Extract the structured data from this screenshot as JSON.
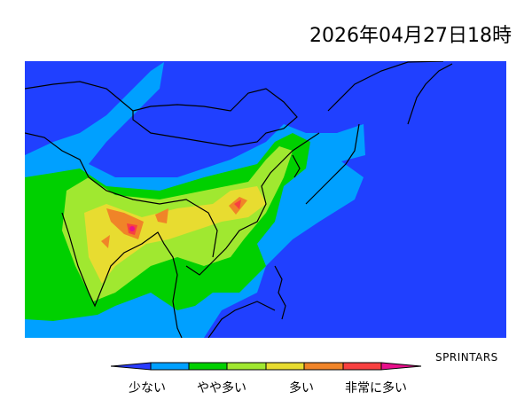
{
  "title": "2026年04月27日18時",
  "credit": "SPRINTARS",
  "legend": {
    "labels": [
      "少ない",
      "やや多い",
      "多い",
      "非常に多い"
    ],
    "colors": [
      "#2a3cff",
      "#00a0ff",
      "#00d000",
      "#a0e830",
      "#e8dc30",
      "#f08428",
      "#f84040",
      "#e8108c"
    ]
  },
  "map": {
    "background_color": "#2040ff",
    "coastline_color": "#000000"
  }
}
